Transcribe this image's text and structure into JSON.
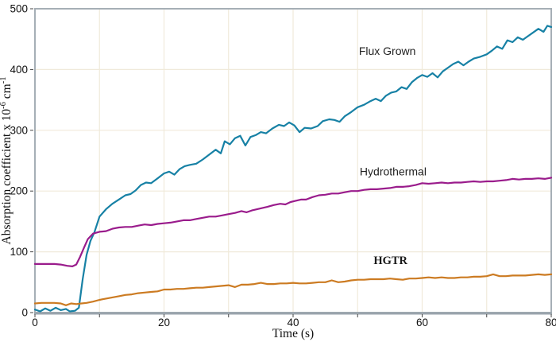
{
  "chart_data": {
    "type": "line",
    "title": "",
    "xlabel": "Time (s)",
    "ylabel": "Absorption coefficient x 10⁻⁶ cm⁻¹",
    "ylabel_parts": {
      "prefix": "Absorption coefficient x 10",
      "sup1": "-6",
      "mid": " cm",
      "sup2": "-1"
    },
    "xlim": [
      0,
      80
    ],
    "ylim": [
      0,
      500
    ],
    "xticks": [
      0,
      20,
      40,
      60,
      80
    ],
    "yticks": [
      0,
      100,
      200,
      300,
      400,
      500
    ],
    "x_grid_step": 10,
    "y_grid_step": 100,
    "grid_on": true,
    "grid_color": "#F0EADA",
    "axis_color": "#A6AFB6",
    "axis_bottom_color": "#9AA4AC",
    "tick_color": "#444444",
    "legend_position": "inline-labels",
    "series": [
      {
        "name": "Flux Grown",
        "color": "#1781A5",
        "label_font": "sans",
        "label_x": 54.6,
        "label_y": 424,
        "points": [
          [
            0,
            5
          ],
          [
            0.8,
            2
          ],
          [
            1.6,
            7
          ],
          [
            2.4,
            3
          ],
          [
            3.2,
            8
          ],
          [
            4,
            4
          ],
          [
            4.8,
            6
          ],
          [
            5.4,
            2
          ],
          [
            6.2,
            3
          ],
          [
            6.8,
            8
          ],
          [
            7.4,
            55
          ],
          [
            8,
            95
          ],
          [
            8.6,
            118
          ],
          [
            9.2,
            132
          ],
          [
            10,
            158
          ],
          [
            11,
            170
          ],
          [
            12,
            179
          ],
          [
            13,
            186
          ],
          [
            14,
            193
          ],
          [
            14.8,
            195
          ],
          [
            15.6,
            201
          ],
          [
            16.4,
            210
          ],
          [
            17.2,
            214
          ],
          [
            18,
            213
          ],
          [
            19,
            221
          ],
          [
            20,
            229
          ],
          [
            20.8,
            232
          ],
          [
            21.6,
            227
          ],
          [
            22.4,
            236
          ],
          [
            23.2,
            241
          ],
          [
            24,
            243
          ],
          [
            25,
            245
          ],
          [
            26,
            252
          ],
          [
            27,
            260
          ],
          [
            28,
            268
          ],
          [
            28.8,
            262
          ],
          [
            29.4,
            282
          ],
          [
            30.2,
            277
          ],
          [
            31,
            287
          ],
          [
            31.8,
            291
          ],
          [
            32.6,
            275
          ],
          [
            33.4,
            289
          ],
          [
            34.2,
            292
          ],
          [
            35,
            297
          ],
          [
            35.8,
            295
          ],
          [
            36.8,
            303
          ],
          [
            37.8,
            309
          ],
          [
            38.6,
            307
          ],
          [
            39.4,
            313
          ],
          [
            40.2,
            308
          ],
          [
            41,
            297
          ],
          [
            41.8,
            304
          ],
          [
            42.8,
            303
          ],
          [
            43.8,
            307
          ],
          [
            44.6,
            315
          ],
          [
            45.6,
            318
          ],
          [
            46.4,
            317
          ],
          [
            47.2,
            314
          ],
          [
            48,
            323
          ],
          [
            49,
            330
          ],
          [
            50,
            338
          ],
          [
            51,
            342
          ],
          [
            52,
            348
          ],
          [
            52.8,
            352
          ],
          [
            53.6,
            348
          ],
          [
            54.4,
            357
          ],
          [
            55.2,
            362
          ],
          [
            56,
            364
          ],
          [
            56.8,
            371
          ],
          [
            57.6,
            368
          ],
          [
            58.4,
            379
          ],
          [
            59.2,
            386
          ],
          [
            60,
            391
          ],
          [
            60.8,
            388
          ],
          [
            61.6,
            394
          ],
          [
            62.4,
            387
          ],
          [
            63.2,
            397
          ],
          [
            64,
            403
          ],
          [
            64.8,
            409
          ],
          [
            65.6,
            413
          ],
          [
            66.4,
            407
          ],
          [
            67.2,
            413
          ],
          [
            68,
            418
          ],
          [
            69,
            421
          ],
          [
            70,
            425
          ],
          [
            70.8,
            431
          ],
          [
            71.6,
            438
          ],
          [
            72.4,
            434
          ],
          [
            73.2,
            448
          ],
          [
            74,
            445
          ],
          [
            74.8,
            453
          ],
          [
            75.6,
            449
          ],
          [
            76.4,
            455
          ],
          [
            77.2,
            461
          ],
          [
            78,
            467
          ],
          [
            78.8,
            462
          ],
          [
            79.4,
            472
          ],
          [
            80,
            470
          ]
        ]
      },
      {
        "name": "Hydrothermal",
        "color": "#9A1C8C",
        "label_font": "sans",
        "label_x": 55.5,
        "label_y": 226,
        "points": [
          [
            0,
            80
          ],
          [
            1,
            80
          ],
          [
            2,
            80
          ],
          [
            3,
            80
          ],
          [
            4,
            79
          ],
          [
            5,
            77
          ],
          [
            5.8,
            76
          ],
          [
            6.4,
            79
          ],
          [
            7,
            92
          ],
          [
            7.6,
            107
          ],
          [
            8.2,
            121
          ],
          [
            9,
            130
          ],
          [
            10,
            133
          ],
          [
            11,
            134
          ],
          [
            12,
            138
          ],
          [
            13,
            140
          ],
          [
            14,
            141
          ],
          [
            15,
            141
          ],
          [
            16,
            143
          ],
          [
            17,
            145
          ],
          [
            18,
            144
          ],
          [
            19,
            146
          ],
          [
            20,
            147
          ],
          [
            21,
            148
          ],
          [
            22,
            150
          ],
          [
            23,
            152
          ],
          [
            24,
            152
          ],
          [
            25,
            154
          ],
          [
            26,
            156
          ],
          [
            27,
            158
          ],
          [
            28,
            158
          ],
          [
            29,
            160
          ],
          [
            30,
            162
          ],
          [
            31,
            164
          ],
          [
            32,
            167
          ],
          [
            32.8,
            165
          ],
          [
            33.6,
            168
          ],
          [
            34.4,
            170
          ],
          [
            35.2,
            172
          ],
          [
            36,
            174
          ],
          [
            37,
            177
          ],
          [
            38,
            179
          ],
          [
            38.8,
            178
          ],
          [
            39.6,
            182
          ],
          [
            40.4,
            184
          ],
          [
            41.2,
            186
          ],
          [
            42,
            186
          ],
          [
            43,
            190
          ],
          [
            44,
            193
          ],
          [
            45,
            194
          ],
          [
            46,
            196
          ],
          [
            47,
            196
          ],
          [
            48,
            198
          ],
          [
            49,
            200
          ],
          [
            50,
            200
          ],
          [
            51,
            202
          ],
          [
            52,
            203
          ],
          [
            53,
            203
          ],
          [
            54,
            204
          ],
          [
            55,
            205
          ],
          [
            56,
            207
          ],
          [
            57,
            207
          ],
          [
            58,
            208
          ],
          [
            59,
            210
          ],
          [
            60,
            213
          ],
          [
            61,
            212
          ],
          [
            62,
            213
          ],
          [
            63,
            214
          ],
          [
            64,
            213
          ],
          [
            65,
            214
          ],
          [
            66,
            214
          ],
          [
            67,
            215
          ],
          [
            68,
            216
          ],
          [
            69,
            215
          ],
          [
            70,
            216
          ],
          [
            71,
            216
          ],
          [
            72,
            217
          ],
          [
            73,
            218
          ],
          [
            74,
            220
          ],
          [
            75,
            219
          ],
          [
            76,
            220
          ],
          [
            77,
            220
          ],
          [
            78,
            221
          ],
          [
            79,
            220
          ],
          [
            80,
            222
          ]
        ]
      },
      {
        "name": "HGTR",
        "color": "#CC7B22",
        "label_font": "serif-bold",
        "label_x": 55.1,
        "label_y": 80,
        "points": [
          [
            0,
            15
          ],
          [
            1,
            16
          ],
          [
            2,
            16
          ],
          [
            3,
            16
          ],
          [
            4,
            15
          ],
          [
            4.8,
            12
          ],
          [
            5.6,
            15
          ],
          [
            6.4,
            14
          ],
          [
            7.2,
            15
          ],
          [
            8,
            16
          ],
          [
            9,
            18
          ],
          [
            10,
            21
          ],
          [
            11,
            23
          ],
          [
            12,
            25
          ],
          [
            13,
            27
          ],
          [
            14,
            29
          ],
          [
            15,
            30
          ],
          [
            16,
            32
          ],
          [
            17,
            33
          ],
          [
            18,
            34
          ],
          [
            19,
            35
          ],
          [
            20,
            38
          ],
          [
            21,
            38
          ],
          [
            22,
            39
          ],
          [
            23,
            39
          ],
          [
            24,
            40
          ],
          [
            25,
            41
          ],
          [
            26,
            41
          ],
          [
            27,
            42
          ],
          [
            28,
            43
          ],
          [
            29,
            44
          ],
          [
            30,
            45
          ],
          [
            31,
            42
          ],
          [
            32,
            46
          ],
          [
            33,
            46
          ],
          [
            34,
            47
          ],
          [
            35,
            49
          ],
          [
            36,
            47
          ],
          [
            37,
            47
          ],
          [
            38,
            48
          ],
          [
            39,
            48
          ],
          [
            40,
            49
          ],
          [
            41,
            48
          ],
          [
            42,
            48
          ],
          [
            43,
            49
          ],
          [
            44,
            50
          ],
          [
            45,
            50
          ],
          [
            46,
            53
          ],
          [
            47,
            50
          ],
          [
            48,
            51
          ],
          [
            49,
            53
          ],
          [
            50,
            54
          ],
          [
            51,
            54
          ],
          [
            52,
            55
          ],
          [
            53,
            55
          ],
          [
            54,
            55
          ],
          [
            55,
            56
          ],
          [
            56,
            55
          ],
          [
            57,
            54
          ],
          [
            58,
            56
          ],
          [
            59,
            56
          ],
          [
            60,
            57
          ],
          [
            61,
            58
          ],
          [
            62,
            57
          ],
          [
            63,
            58
          ],
          [
            64,
            57
          ],
          [
            65,
            57
          ],
          [
            66,
            58
          ],
          [
            67,
            58
          ],
          [
            68,
            59
          ],
          [
            69,
            59
          ],
          [
            70,
            60
          ],
          [
            71,
            63
          ],
          [
            72,
            60
          ],
          [
            73,
            60
          ],
          [
            74,
            61
          ],
          [
            75,
            61
          ],
          [
            76,
            61
          ],
          [
            77,
            62
          ],
          [
            78,
            63
          ],
          [
            79,
            62
          ],
          [
            80,
            63
          ]
        ]
      }
    ]
  }
}
